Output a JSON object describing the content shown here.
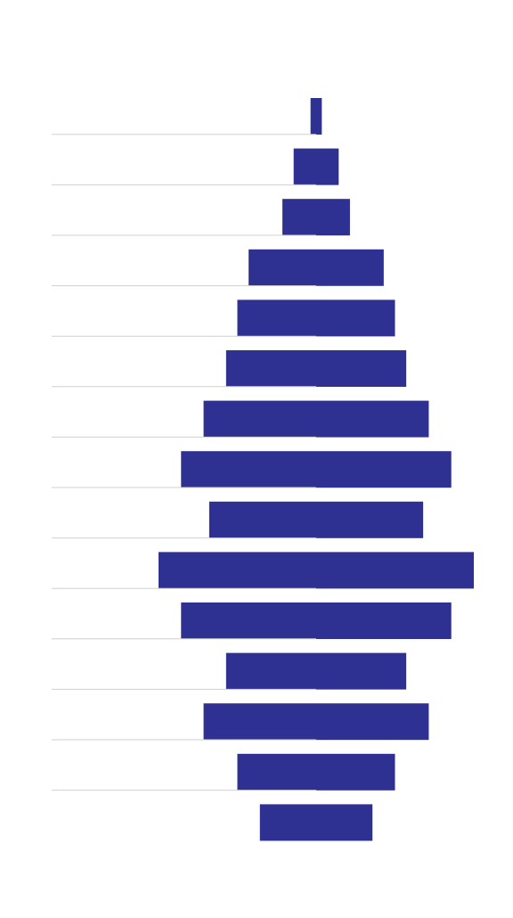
{
  "chart_data": {
    "type": "funnel",
    "categories": [
      null,
      null,
      null,
      null,
      null,
      null,
      null,
      null,
      null,
      null,
      null,
      null,
      null,
      null,
      null
    ],
    "values": [
      0.5,
      2,
      3,
      6,
      7,
      8,
      10,
      12,
      9.5,
      14,
      12,
      8,
      10,
      7,
      5
    ],
    "color": "#2e3192"
  }
}
